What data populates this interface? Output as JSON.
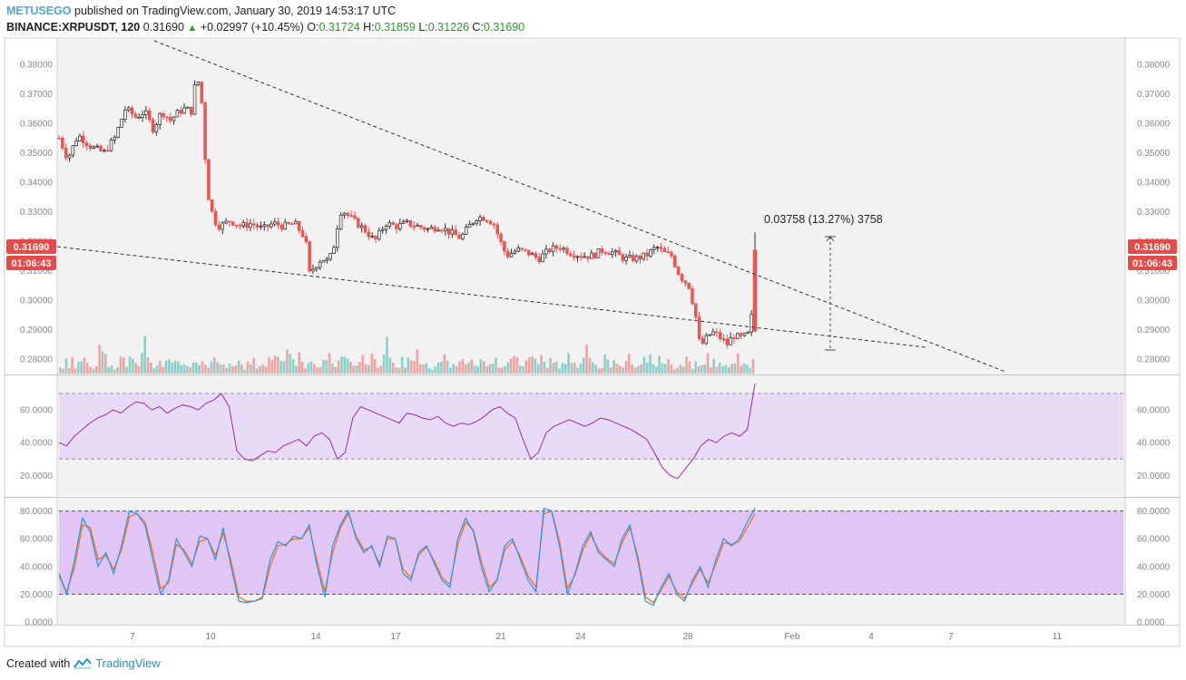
{
  "header": {
    "author": "METUSEGO",
    "published_text": "published on TradingView.com, January 30, 2019 14:53:17 UTC",
    "symbol": "BINANCE:XRPUSDT, 120",
    "last": "0.31690",
    "change_arrow": "▲",
    "change": "+0.02997 (+10.45%)",
    "o_label": "O:",
    "o_value": "0.31724",
    "h_label": "H:",
    "h_value": "0.31859",
    "l_label": "L:",
    "l_value": "0.31226",
    "c_label": "C:",
    "c_value": "0.31690"
  },
  "footer": {
    "created_with": "Created with",
    "brand": "TradingView",
    "logo_icon": "tradingview-logo-icon"
  },
  "chart_data": {
    "type": "candlestick",
    "colors": {
      "up": "#ffffff",
      "down": "#ef5350",
      "volume_up": "#80cbc4",
      "volume_down": "#ef9a9a",
      "rsi_line": "#9c27b0",
      "rsi_band": "#e8dbf5",
      "stoch_k": "#2196f3",
      "stoch_d": "#ff6d00",
      "stoch_band": "#e1c6f5",
      "price_badge": "#e54b4b"
    },
    "price_axis": {
      "range": [
        0.275,
        0.388
      ],
      "ticks": [
        "0.38000",
        "0.37000",
        "0.36000",
        "0.35000",
        "0.34000",
        "0.33000",
        "0.32000",
        "0.31000",
        "0.30000",
        "0.29000",
        "0.28000"
      ]
    },
    "last_price_label": "0.31690",
    "countdown_label": "01:06:43",
    "x_ticks": [
      "7",
      "10",
      "14",
      "17",
      "21",
      "24",
      "28",
      "Feb",
      "4",
      "7",
      "11"
    ],
    "price_path": [
      [
        0,
        0.355
      ],
      [
        8,
        0.348
      ],
      [
        18,
        0.356
      ],
      [
        30,
        0.352
      ],
      [
        42,
        0.35
      ],
      [
        52,
        0.355
      ],
      [
        62,
        0.365
      ],
      [
        72,
        0.362
      ],
      [
        80,
        0.364
      ],
      [
        88,
        0.358
      ],
      [
        96,
        0.364
      ],
      [
        104,
        0.361
      ],
      [
        112,
        0.364
      ],
      [
        118,
        0.365
      ],
      [
        124,
        0.364
      ],
      [
        128,
        0.376
      ],
      [
        131,
        0.373
      ],
      [
        134,
        0.365
      ],
      [
        137,
        0.345
      ],
      [
        140,
        0.334
      ],
      [
        145,
        0.327
      ],
      [
        150,
        0.325
      ],
      [
        160,
        0.327
      ],
      [
        170,
        0.325
      ],
      [
        180,
        0.326
      ],
      [
        190,
        0.324
      ],
      [
        200,
        0.326
      ],
      [
        210,
        0.325
      ],
      [
        220,
        0.326
      ],
      [
        230,
        0.321
      ],
      [
        234,
        0.309
      ],
      [
        238,
        0.311
      ],
      [
        245,
        0.314
      ],
      [
        252,
        0.313
      ],
      [
        258,
        0.32
      ],
      [
        262,
        0.33
      ],
      [
        266,
        0.33
      ],
      [
        275,
        0.327
      ],
      [
        285,
        0.324
      ],
      [
        295,
        0.32
      ],
      [
        305,
        0.326
      ],
      [
        315,
        0.325
      ],
      [
        325,
        0.326
      ],
      [
        335,
        0.325
      ],
      [
        345,
        0.324
      ],
      [
        355,
        0.325
      ],
      [
        365,
        0.323
      ],
      [
        375,
        0.321
      ],
      [
        385,
        0.326
      ],
      [
        390,
        0.328
      ],
      [
        398,
        0.328
      ],
      [
        406,
        0.326
      ],
      [
        412,
        0.32
      ],
      [
        418,
        0.315
      ],
      [
        428,
        0.317
      ],
      [
        438,
        0.316
      ],
      [
        448,
        0.314
      ],
      [
        458,
        0.317
      ],
      [
        468,
        0.318
      ],
      [
        478,
        0.316
      ],
      [
        488,
        0.315
      ],
      [
        498,
        0.315
      ],
      [
        508,
        0.317
      ],
      [
        518,
        0.316
      ],
      [
        528,
        0.314
      ],
      [
        538,
        0.314
      ],
      [
        548,
        0.315
      ],
      [
        558,
        0.318
      ],
      [
        565,
        0.316
      ],
      [
        572,
        0.315
      ],
      [
        580,
        0.308
      ],
      [
        588,
        0.305
      ],
      [
        594,
        0.296
      ],
      [
        598,
        0.286
      ],
      [
        602,
        0.285
      ],
      [
        606,
        0.288
      ],
      [
        612,
        0.289
      ],
      [
        618,
        0.287
      ],
      [
        624,
        0.285
      ],
      [
        630,
        0.288
      ],
      [
        636,
        0.287
      ],
      [
        642,
        0.288
      ],
      [
        646,
        0.289
      ],
      [
        650,
        0.3169
      ]
    ],
    "volume_series": [
      3,
      2,
      4,
      3,
      5,
      2,
      3,
      4,
      6,
      5,
      3,
      2,
      4,
      7,
      8,
      5,
      3,
      4,
      2,
      3,
      5,
      4,
      3,
      6,
      4,
      3,
      2,
      5,
      9,
      4,
      3,
      2,
      3,
      4,
      3,
      5,
      4,
      3,
      6,
      4,
      3,
      4,
      3,
      2,
      3,
      4,
      3,
      5,
      4,
      2,
      3,
      4,
      3,
      4,
      5,
      3,
      4,
      2,
      3,
      4,
      3,
      2,
      4,
      3,
      5,
      2,
      3,
      4,
      3,
      4,
      6,
      5,
      4,
      3,
      6,
      7,
      5,
      4,
      3,
      9
    ],
    "rsi": {
      "ticks": [
        "60.0000",
        "40.0000",
        "20.0000"
      ],
      "range": [
        8,
        80
      ],
      "upper_band": 70,
      "lower_band": 30,
      "values": [
        40,
        38,
        44,
        48,
        52,
        55,
        57,
        60,
        58,
        62,
        65,
        64,
        60,
        62,
        58,
        61,
        63,
        62,
        60,
        64,
        66,
        70,
        62,
        35,
        30,
        29,
        32,
        35,
        34,
        38,
        40,
        42,
        38,
        44,
        46,
        42,
        30,
        34,
        55,
        62,
        60,
        58,
        56,
        54,
        52,
        58,
        57,
        55,
        54,
        56,
        52,
        50,
        52,
        51,
        53,
        56,
        60,
        62,
        58,
        55,
        42,
        30,
        34,
        46,
        50,
        52,
        54,
        52,
        50,
        52,
        55,
        54,
        52,
        50,
        48,
        45,
        42,
        34,
        25,
        20,
        18,
        24,
        30,
        38,
        42,
        40,
        44,
        46,
        44,
        48,
        76
      ]
    },
    "stoch": {
      "ticks": [
        "80.0000",
        "60.0000",
        "40.0000",
        "20.0000",
        "0.0000"
      ],
      "range": [
        0,
        85
      ],
      "upper_band": 80,
      "lower_band": 20,
      "k_values": [
        35,
        20,
        45,
        75,
        65,
        40,
        50,
        35,
        55,
        80,
        78,
        70,
        45,
        20,
        30,
        60,
        50,
        40,
        62,
        60,
        45,
        68,
        40,
        15,
        14,
        15,
        18,
        45,
        58,
        55,
        62,
        60,
        70,
        40,
        18,
        55,
        70,
        80,
        60,
        50,
        55,
        40,
        62,
        60,
        35,
        30,
        50,
        55,
        42,
        30,
        25,
        60,
        75,
        65,
        40,
        22,
        30,
        55,
        60,
        45,
        30,
        22,
        82,
        80,
        55,
        20,
        35,
        55,
        65,
        50,
        45,
        40,
        60,
        70,
        45,
        15,
        12,
        25,
        35,
        20,
        15,
        30,
        40,
        25,
        45,
        60,
        55,
        60,
        72,
        82
      ],
      "d_values": [
        33,
        22,
        40,
        70,
        68,
        45,
        48,
        38,
        52,
        76,
        78,
        72,
        50,
        24,
        28,
        56,
        52,
        42,
        58,
        60,
        48,
        64,
        44,
        18,
        15,
        15,
        17,
        40,
        55,
        56,
        60,
        60,
        68,
        44,
        22,
        50,
        68,
        78,
        62,
        52,
        54,
        42,
        60,
        60,
        38,
        32,
        48,
        54,
        44,
        32,
        27,
        56,
        72,
        66,
        44,
        25,
        30,
        52,
        58,
        47,
        33,
        25,
        78,
        80,
        58,
        24,
        34,
        52,
        63,
        52,
        46,
        42,
        57,
        68,
        48,
        18,
        14,
        23,
        33,
        22,
        17,
        28,
        38,
        28,
        42,
        57,
        56,
        58,
        68,
        78
      ]
    },
    "measure_label": "0.03758 (13.27%) 3758"
  }
}
